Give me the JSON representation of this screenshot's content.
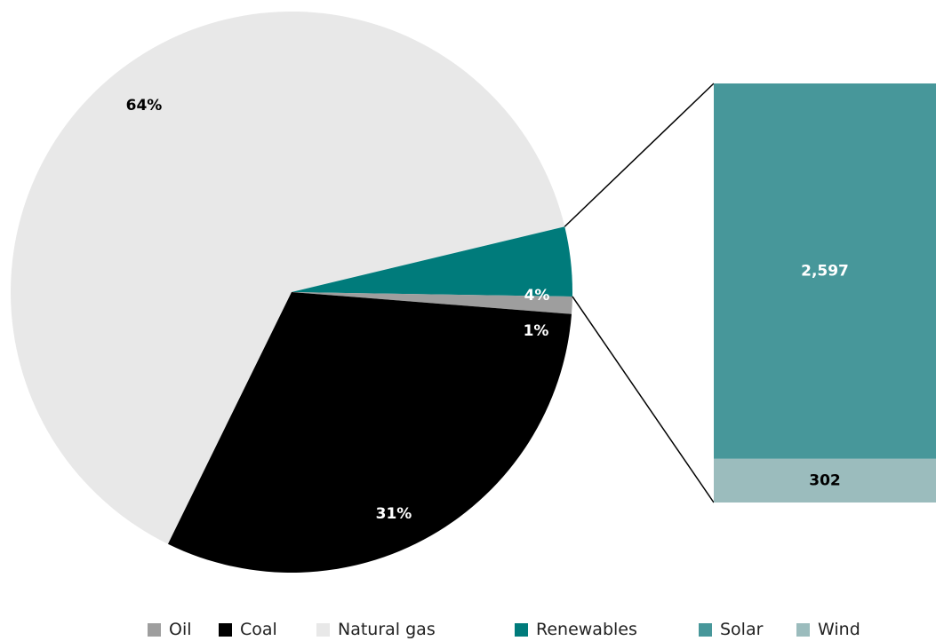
{
  "chart_data": [
    {
      "type": "pie",
      "slices": [
        {
          "name": "Natural gas",
          "value": 64,
          "label": "64%",
          "color": "#e8e8e8"
        },
        {
          "name": "Renewables",
          "value": 4,
          "label": "4%",
          "color": "#007b7b"
        },
        {
          "name": "Oil",
          "value": 1,
          "label": "1%",
          "color": "#9e9e9e"
        },
        {
          "name": "Coal",
          "value": 31,
          "label": "31%",
          "color": "#000000"
        }
      ]
    },
    {
      "type": "bar",
      "stacked": true,
      "segments": [
        {
          "name": "Solar",
          "value": 2597,
          "label": "2,597",
          "color": "#47979a"
        },
        {
          "name": "Wind",
          "value": 302,
          "label": "302",
          "color": "#9bbcbd"
        }
      ]
    }
  ],
  "legend": [
    {
      "name": "Oil",
      "color": "#9e9e9e"
    },
    {
      "name": "Coal",
      "color": "#000000"
    },
    {
      "name": "Natural gas",
      "color": "#e8e8e8"
    },
    {
      "name": "Renewables",
      "color": "#007b7b"
    },
    {
      "name": "Solar",
      "color": "#47979a"
    },
    {
      "name": "Wind",
      "color": "#9bbcbd"
    }
  ]
}
